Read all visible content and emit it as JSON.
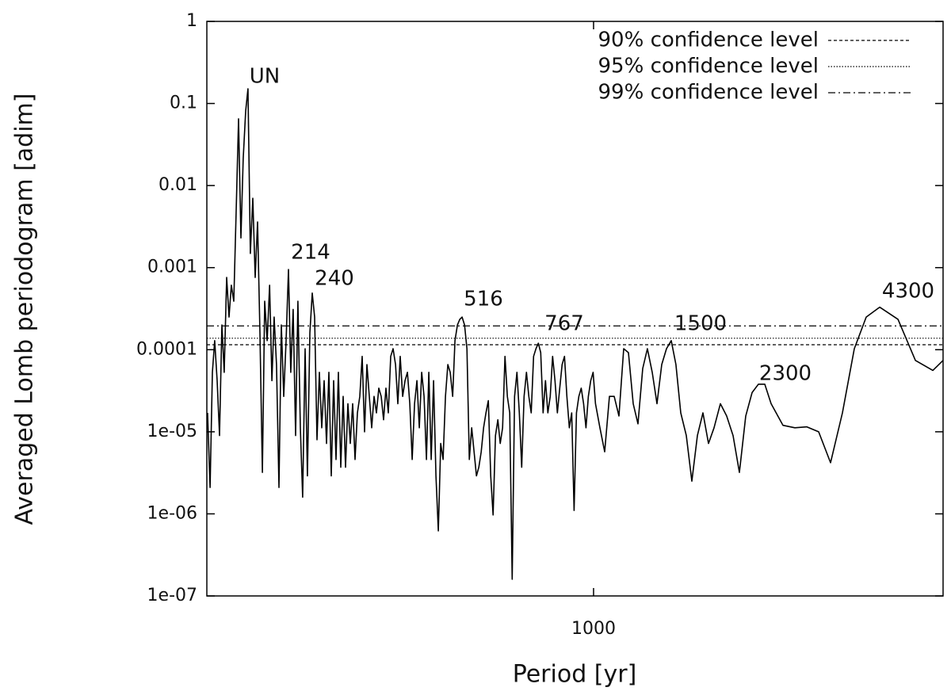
{
  "chart_data": {
    "type": "line",
    "xlabel": "Period [yr]",
    "ylabel": "Averaged Lomb periodogram [adim]",
    "xscale": "log",
    "yscale": "log",
    "xlim": [
      139.3,
      5939
    ],
    "ylim": [
      1e-07,
      1
    ],
    "xticks": [
      1000
    ],
    "yticks": [
      {
        "value": 1e-07,
        "label": "1e-07"
      },
      {
        "value": 1e-06,
        "label": "1e-06"
      },
      {
        "value": 1e-05,
        "label": "1e-05"
      },
      0.0001,
      0.001,
      0.01,
      0.1,
      1
    ],
    "color": "#000000",
    "legend": "upper right",
    "reference_lines": [
      {
        "name": "90% confidence level",
        "value": 0.000115,
        "dash": "4,3"
      },
      {
        "name": "95% confidence level",
        "value": 0.000138,
        "dash": "1.5,2"
      },
      {
        "name": "99% confidence level",
        "value": 0.000195,
        "dash": "9,4,2,4"
      }
    ],
    "annotations": [
      "UN",
      "214",
      "240",
      "516",
      "767",
      "1500",
      "2300",
      "4300"
    ],
    "x": [
      139.8,
      141.6,
      143.3,
      145.0,
      146.8,
      148.6,
      150.4,
      152.2,
      154.1,
      156.0,
      157.8,
      159.8,
      161.7,
      163.7,
      165.7,
      167.7,
      169.8,
      171.8,
      173.9,
      176.1,
      178.2,
      180.4,
      182.6,
      184.9,
      187.1,
      189.4,
      191.8,
      194.1,
      196.3,
      198.7,
      201.2,
      203.6,
      206.1,
      208.6,
      211.2,
      213.7,
      216.3,
      219.0,
      221.6,
      224.4,
      227.0,
      229.9,
      232.6,
      235.5,
      238.4,
      241.3,
      244.2,
      247.2,
      250.2,
      253.3,
      256.4,
      259.5,
      262.7,
      265.9,
      269.1,
      272.4,
      275.7,
      279.1,
      282.5,
      285.9,
      289.4,
      292.9,
      296.5,
      300.1,
      303.8,
      307.5,
      311.2,
      315.0,
      318.9,
      322.8,
      326.7,
      330.7,
      334.7,
      338.8,
      342.9,
      347.1,
      351.3,
      355.6,
      360.0,
      364.4,
      368.8,
      373.3,
      377.9,
      382.5,
      387.2,
      391.9,
      396.7,
      401.5,
      406.4,
      411.4,
      416.4,
      421.5,
      426.6,
      431.8,
      437.1,
      442.4,
      447.9,
      453.3,
      458.9,
      464.5,
      470.1,
      475.9,
      481.7,
      487.6,
      493.5,
      499.6,
      505.7,
      511.8,
      518.1,
      524.4,
      530.8,
      537.3,
      543.8,
      550.5,
      557.2,
      564.0,
      570.9,
      577.8,
      584.9,
      592.0,
      599.3,
      606.6,
      614.0,
      621.5,
      629.1,
      636.8,
      644.5,
      652.4,
      660.4,
      668.5,
      676.6,
      684.9,
      693.2,
      701.7,
      710.3,
      718.9,
      727.7,
      736.6,
      745.6,
      754.7,
      763.9,
      773.3,
      782.7,
      792.3,
      801.9,
      811.7,
      821.6,
      831.7,
      841.8,
      852.1,
      862.5,
      873.0,
      883.7,
      894.5,
      905.4,
      916.5,
      927.7,
      939.0,
      950.5,
      962.1,
      973.8,
      985.7,
      997.7,
      1009.9,
      1032.8,
      1058.2,
      1084.1,
      1110.7,
      1138.1,
      1166.3,
      1194.5,
      1223.9,
      1254.0,
      1284.7,
      1316.0,
      1348.4,
      1381.6,
      1415.5,
      1450.2,
      1485.8,
      1522.0,
      1559.6,
      1604.4,
      1650.3,
      1697.5,
      1746.2,
      1796.5,
      1848.1,
      1908.6,
      1971.0,
      2036.2,
      2102.9,
      2171.8,
      2243.5,
      2317.0,
      2393.0,
      2471.8,
      2626.4,
      2790.2,
      2964.7,
      3149.9,
      3346.3,
      3555.4,
      3777.9,
      4013.7,
      4299.4,
      4719.0,
      5157.7,
      5636.4,
      5939
    ],
    "values": [
      1.7e-05,
      2.1e-06,
      5.3e-05,
      0.000129,
      4.2e-05,
      9e-06,
      0.0002,
      5.3e-05,
      0.00076,
      0.00025,
      0.00061,
      0.00039,
      0.0045,
      0.065,
      0.0023,
      0.0214,
      0.081,
      0.151,
      0.00149,
      0.007,
      0.00076,
      0.0036,
      0.00016,
      3.2e-06,
      0.00039,
      0.000129,
      0.00061,
      4.2e-05,
      0.00025,
      6.6e-05,
      2.1e-06,
      0.0002,
      2.7e-05,
      0.000129,
      0.00095,
      5.3e-05,
      0.00031,
      9e-06,
      0.00039,
      1.12e-05,
      1.6e-06,
      0.000103,
      2.9e-06,
      0.00016,
      0.00049,
      0.00025,
      8e-06,
      5.3e-05,
      1.12e-05,
      4.2e-05,
      7.2e-06,
      5.3e-05,
      2.9e-06,
      4.2e-05,
      4.6e-06,
      5.3e-05,
      3.7e-06,
      2.7e-05,
      3.7e-06,
      2.2e-05,
      7.2e-06,
      2.2e-05,
      4.6e-06,
      1.7e-05,
      2.7e-05,
      8.3e-05,
      1e-05,
      6.6e-05,
      2.7e-05,
      1.12e-05,
      2.7e-05,
      1.7e-05,
      3.4e-05,
      2.7e-05,
      1.4e-05,
      3.4e-05,
      1.7e-05,
      8.3e-05,
      0.000103,
      6.6e-05,
      2.2e-05,
      8.3e-05,
      2.7e-05,
      4.2e-05,
      5.3e-05,
      2.2e-05,
      4.6e-06,
      2.2e-05,
      4.2e-05,
      1.12e-05,
      5.3e-05,
      2.7e-05,
      4.6e-06,
      5.3e-05,
      4.6e-06,
      4.2e-05,
      2.9e-06,
      6.2e-07,
      7.2e-06,
      4.6e-06,
      2.7e-05,
      6.6e-05,
      5.3e-05,
      2.7e-05,
      0.000129,
      0.0002,
      0.000235,
      0.00025,
      0.0002,
      0.000103,
      4.6e-06,
      1.12e-05,
      5.7e-06,
      2.9e-06,
      3.7e-06,
      5.7e-06,
      1.12e-05,
      1.7e-05,
      2.4e-05,
      2.9e-06,
      9.7e-07,
      9e-06,
      1.4e-05,
      7.2e-06,
      1.12e-05,
      8.3e-05,
      2.7e-05,
      1.7e-05,
      1.6e-07,
      2.7e-05,
      5.3e-05,
      1.7e-05,
      3.7e-06,
      2.7e-05,
      5.3e-05,
      2.7e-05,
      1.7e-05,
      8.3e-05,
      0.000103,
      0.00012,
      9.2e-05,
      1.7e-05,
      4.2e-05,
      1.7e-05,
      2.7e-05,
      8.3e-05,
      4.2e-05,
      1.7e-05,
      3.4e-05,
      6.6e-05,
      8.3e-05,
      2.7e-05,
      1.12e-05,
      1.7e-05,
      1.1e-06,
      1.7e-05,
      2.7e-05,
      3.4e-05,
      2.2e-05,
      1.12e-05,
      2.7e-05,
      4.2e-05,
      5.3e-05,
      2.2e-05,
      1.12e-05,
      5.7e-06,
      2.7e-05,
      2.7e-05,
      1.56e-05,
      0.000103,
      9.2e-05,
      2.2e-05,
      1.25e-05,
      5.9e-05,
      0.000103,
      5.3e-05,
      2.2e-05,
      6.6e-05,
      0.000103,
      0.000129,
      6.6e-05,
      1.7e-05,
      9e-06,
      2.5e-06,
      9e-06,
      1.7e-05,
      7.2e-06,
      1.12e-05,
      2.2e-05,
      1.56e-05,
      9e-06,
      3.2e-06,
      1.56e-05,
      3e-05,
      3.8e-05,
      3.8e-05,
      2.2e-05,
      1.2e-05,
      1.12e-05,
      1.15e-05,
      1e-05,
      4.2e-06,
      1.7e-05,
      0.000103,
      0.00025,
      0.00033,
      0.000235,
      7.4e-05,
      5.6e-05,
      7.4e-05
    ]
  }
}
